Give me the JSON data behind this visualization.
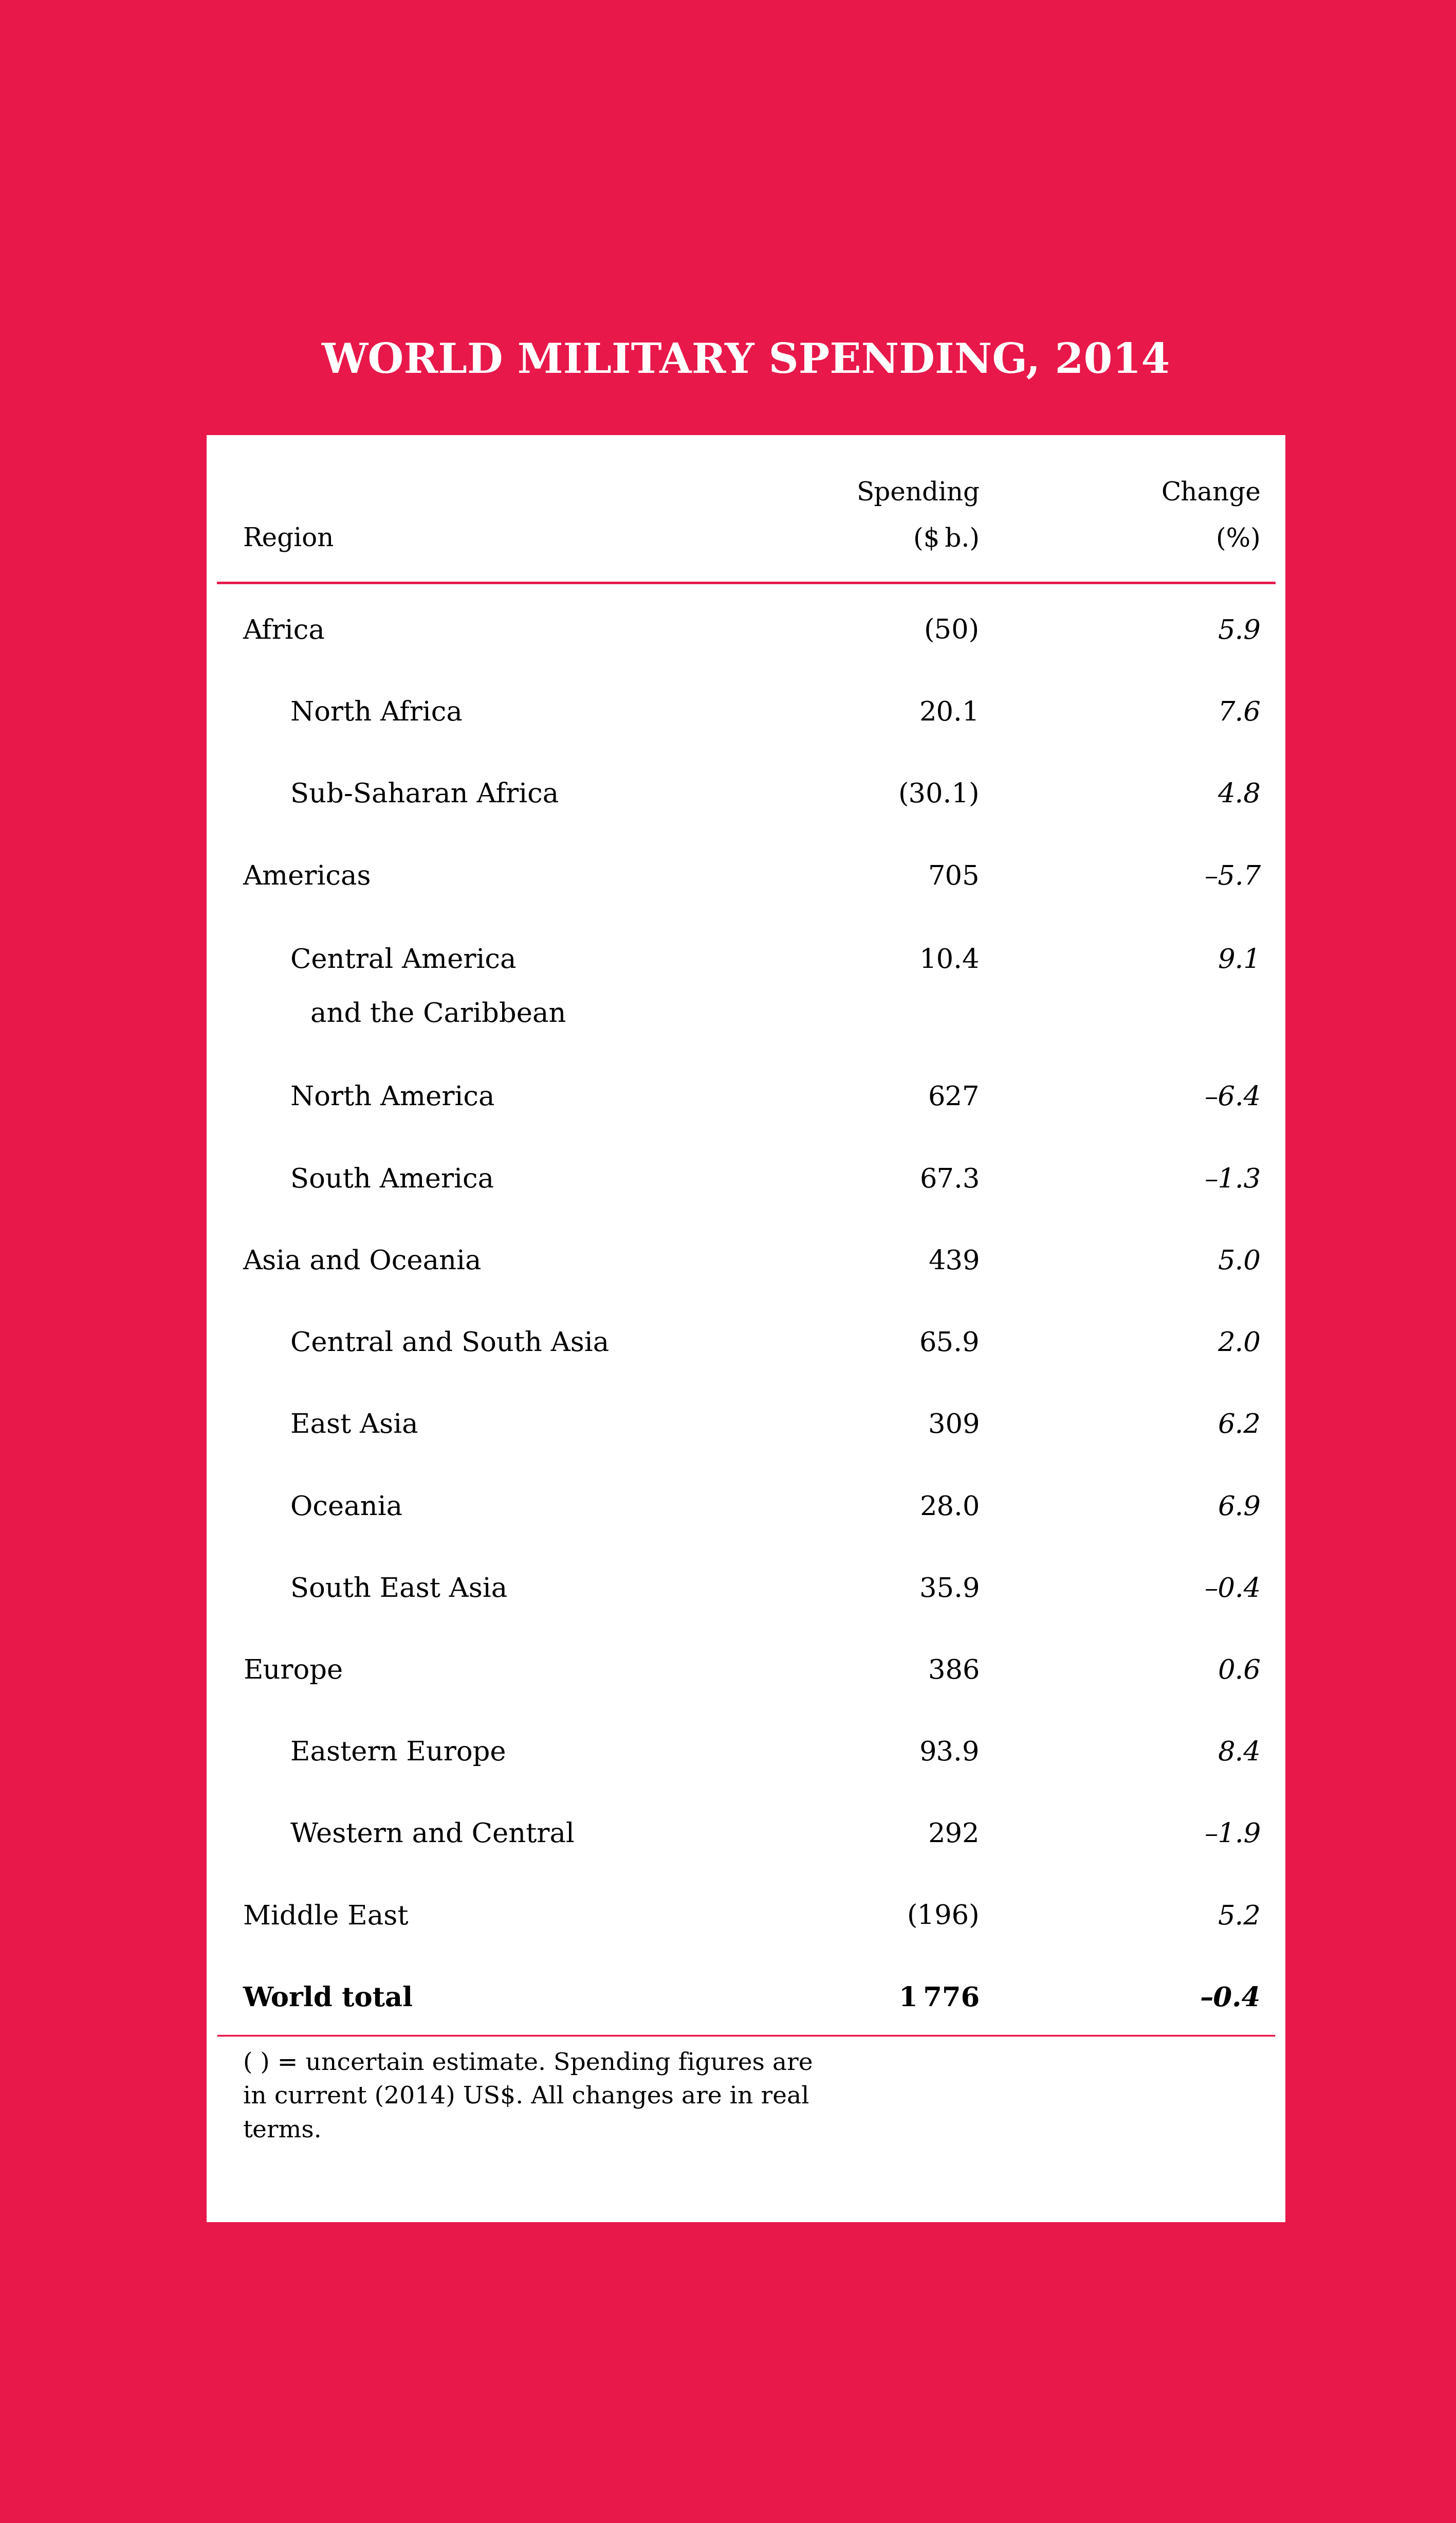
{
  "title": "WORLD MILITARY SPENDING, 2014",
  "title_bg_color": "#E8184A",
  "title_text_color": "#FFFFFF",
  "table_bg_color": "#FFFFFF",
  "border_color": "#E8184A",
  "line_color": "#E8184A",
  "rows": [
    {
      "region": "Africa",
      "indent": 0,
      "spending": "(50)",
      "change": "5.9",
      "bold": false,
      "multiline": false
    },
    {
      "region": "North Africa",
      "indent": 1,
      "spending": "20.1",
      "change": "7.6",
      "bold": false,
      "multiline": false
    },
    {
      "region": "Sub-Saharan Africa",
      "indent": 1,
      "spending": "(30.1)",
      "change": "4.8",
      "bold": false,
      "multiline": false
    },
    {
      "region": "Americas",
      "indent": 0,
      "spending": "705",
      "change": "–5.7",
      "bold": false,
      "multiline": false
    },
    {
      "region": "Central America\nand the Caribbean",
      "indent": 1,
      "spending": "10.4",
      "change": "9.1",
      "bold": false,
      "multiline": true
    },
    {
      "region": "North America",
      "indent": 1,
      "spending": "627",
      "change": "–6.4",
      "bold": false,
      "multiline": false
    },
    {
      "region": "South America",
      "indent": 1,
      "spending": "67.3",
      "change": "–1.3",
      "bold": false,
      "multiline": false
    },
    {
      "region": "Asia and Oceania",
      "indent": 0,
      "spending": "439",
      "change": "5.0",
      "bold": false,
      "multiline": false
    },
    {
      "region": "Central and South Asia",
      "indent": 1,
      "spending": "65.9",
      "change": "2.0",
      "bold": false,
      "multiline": false
    },
    {
      "region": "East Asia",
      "indent": 1,
      "spending": "309",
      "change": "6.2",
      "bold": false,
      "multiline": false
    },
    {
      "region": "Oceania",
      "indent": 1,
      "spending": "28.0",
      "change": "6.9",
      "bold": false,
      "multiline": false
    },
    {
      "region": "South East Asia",
      "indent": 1,
      "spending": "35.9",
      "change": "–0.4",
      "bold": false,
      "multiline": false
    },
    {
      "region": "Europe",
      "indent": 0,
      "spending": "386",
      "change": "0.6",
      "bold": false,
      "multiline": false
    },
    {
      "region": "Eastern Europe",
      "indent": 1,
      "spending": "93.9",
      "change": "8.4",
      "bold": false,
      "multiline": false
    },
    {
      "region": "Western and Central",
      "indent": 1,
      "spending": "292",
      "change": "–1.9",
      "bold": false,
      "multiline": false
    },
    {
      "region": "Middle East",
      "indent": 0,
      "spending": "(196)",
      "change": "5.2",
      "bold": false,
      "multiline": false
    },
    {
      "region": "World total",
      "indent": 0,
      "spending": "1 776",
      "change": "–0.4",
      "bold": true,
      "multiline": false
    }
  ],
  "footer": "( ) = uncertain estimate. Spending figures are\nin current (2014) US$. All changes are in real\nterms.",
  "hdr1_spending": "Spending",
  "hdr1_change": "Change",
  "hdr2_region": "Region",
  "hdr2_spending": "($ b.)",
  "hdr2_change": "(%)"
}
